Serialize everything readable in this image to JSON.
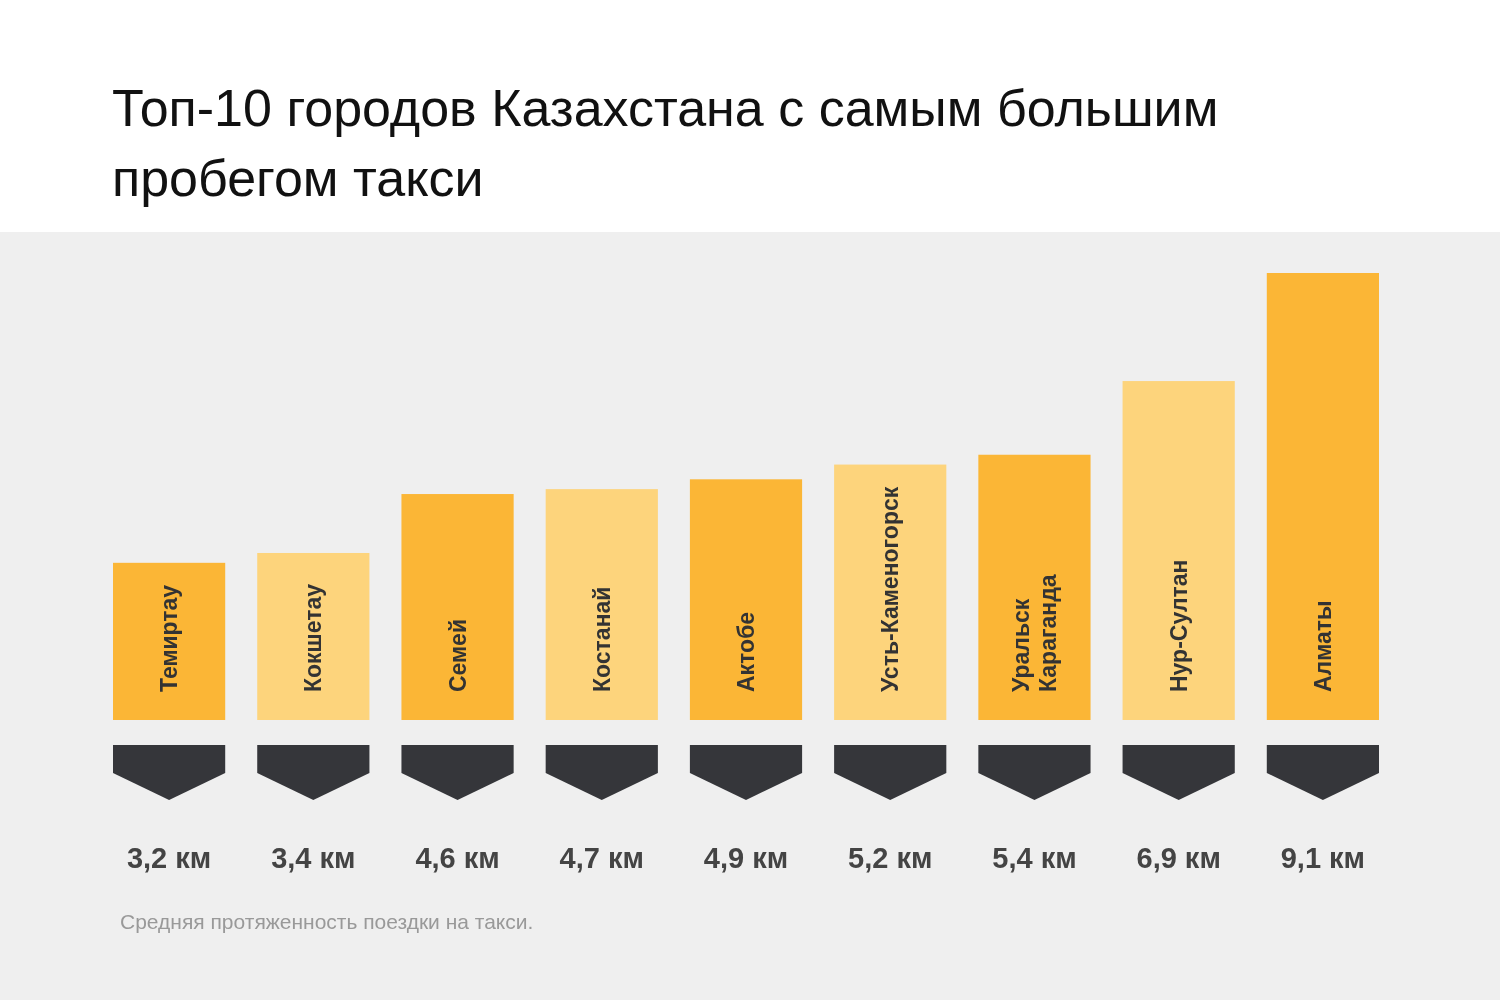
{
  "chart_data": {
    "type": "bar",
    "title": "Топ-10 городов Казахстана с самым большим пробегом такси",
    "categories": [
      "Темиртау",
      "Кокшетау",
      "Семей",
      "Костанай",
      "Актобе",
      "Усть-Каменогорск",
      "Уральск Караганда",
      "Нур-Султан",
      "Алматы"
    ],
    "values": [
      3.2,
      3.4,
      4.6,
      4.7,
      4.9,
      5.2,
      5.4,
      6.9,
      9.1
    ],
    "colors": [
      "#fbb636",
      "#fdd47c",
      "#fbb636",
      "#fdd47c",
      "#fbb636",
      "#fdd47c",
      "#fbb636",
      "#fdd47c",
      "#fbb636"
    ],
    "value_labels": [
      "3,2 км",
      "3,4 км",
      "4,6 км",
      "4,7 км",
      "4,9 км",
      "5,2 км",
      "5,4 км",
      "6,9 км",
      "9,1 км"
    ],
    "annotations": [
      "Средняя протяженность поездки на такси."
    ]
  }
}
